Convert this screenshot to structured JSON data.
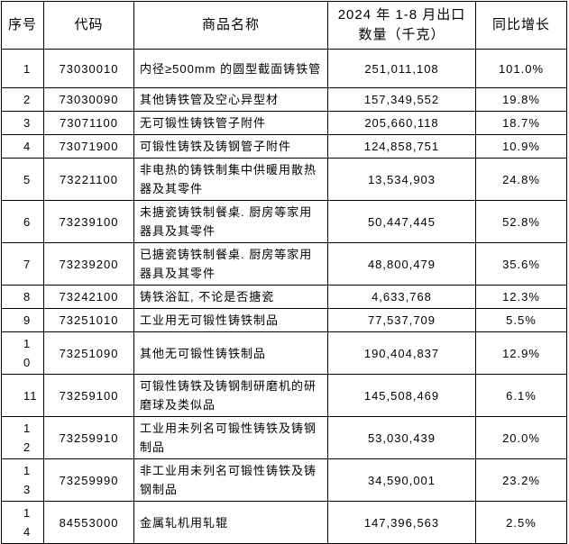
{
  "table": {
    "header": [
      "序号",
      "代码",
      "商品名称",
      "2024 年 1-8 月出口数量（千克）",
      "同比增长"
    ],
    "rows": [
      [
        "1",
        "73030010",
        "内径≥500mm 的圆型截面铸铁管",
        "251,011,108",
        "101.0%"
      ],
      [
        "2",
        "73030090",
        "其他铸铁管及空心异型材",
        "157,349,552",
        "19.8%"
      ],
      [
        "3",
        "73071100",
        "无可锻性铸铁管子附件",
        "205,660,118",
        "18.7%"
      ],
      [
        "4",
        "73071900",
        "可锻性铸铁及铸钢管子附件",
        "124,858,751",
        "10.9%"
      ],
      [
        "5",
        "73221100",
        "非电热的铸铁制集中供暖用散热器及其零件",
        "13,534,903",
        "24.8%"
      ],
      [
        "6",
        "73239100",
        "未搪瓷铸铁制餐桌. 厨房等家用器具及其零件",
        "50,447,445",
        "52.8%"
      ],
      [
        "7",
        "73239200",
        "已搪瓷铸铁制餐桌. 厨房等家用器具及其零件",
        "48,800,479",
        "35.6%"
      ],
      [
        "8",
        "73242100",
        "铸铁浴缸, 不论是否搪瓷",
        "4,633,768",
        "12.3%"
      ],
      [
        "9",
        "73251010",
        "工业用无可锻性铸铁制品",
        "77,537,709",
        "5.5%"
      ],
      [
        "10",
        "73251090",
        "其他无可锻性铸铁制品",
        "190,404,837",
        "12.9%"
      ],
      [
        "11",
        "73259100",
        "可锻性铸铁及铸钢制研磨机的研磨球及类似品",
        "145,508,469",
        "6.1%"
      ],
      [
        "12",
        "73259910",
        "工业用未列名可锻性铸铁及铸钢制品",
        "53,030,439",
        "20.0%"
      ],
      [
        "13",
        "73259990",
        "非工业用未列名可锻性铸铁及铸钢制品",
        "34,590,001",
        "23.2%"
      ],
      [
        "14",
        "84553000",
        "金属轧机用轧辊",
        "147,396,563",
        "2.5%"
      ]
    ]
  }
}
